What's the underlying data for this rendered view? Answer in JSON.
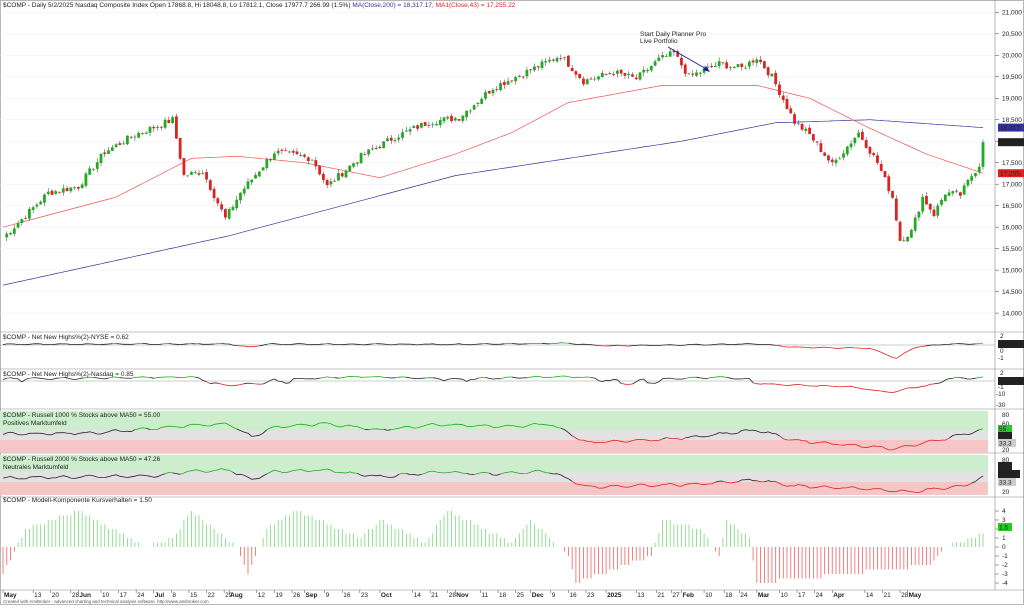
{
  "header": {
    "symbol": "$COMP",
    "line": "- Daily 5/2/2025 Nasdaq Composite Index Open 17868.8, Hi 18048.8, Lo 17812.1, Close 17977.7  266.99  (1.5%)",
    "ma200": "MA(Close,200) = 18,317.17,",
    "ma43": "MA1(Close,43) = 17,255.22"
  },
  "annotation": {
    "line1": "Start Daily Planner Pro",
    "line2": "Live Portfolio"
  },
  "price_badges": {
    "last": "17,977.",
    "ma200": "18,317.",
    "ma43": "17,255."
  },
  "footer": "Created with AmiBroker - advanced charting and technical analysis software. http://www.amibroker.com",
  "colors": {
    "up": "#22aa22",
    "down": "#dd2222",
    "ma200": "#333399",
    "ma43": "#ee5555",
    "green_zone": "#cdeecd",
    "red_zone": "#f6c6c6"
  },
  "panels": {
    "p1": {
      "title": "$COMP - Net New Highs%(2)-NYSE = 0.62",
      "ticks": [
        "2",
        "0",
        "-1"
      ],
      "badge": "0.62158"
    },
    "p2": {
      "title": "$COMP - Net New Highs%(2)-Nasdaq = 0.85",
      "ticks": [
        "2",
        "-1",
        "-10",
        "-30"
      ],
      "badge": "0.84598"
    },
    "p3": {
      "title": "$COMP - Russell 1000 % Stocks above MA50 = 55.00",
      "subtitle": "Positives Marktumfeld",
      "ticks": [
        "80",
        "60",
        "40",
        "20"
      ],
      "badges": [
        "55",
        "50",
        "33.3"
      ]
    },
    "p4": {
      "title": "$COMP - Russell 2000 % Stocks above MA50 = 47.26",
      "subtitle": "Neutrales Marktumfeld",
      "ticks": [
        "80",
        "60",
        "40",
        "20"
      ],
      "badges": [
        "50",
        "47.26",
        "33.3"
      ]
    },
    "p5": {
      "title": "$COMP - Modell-Komponente Kursverhalten = 1.50",
      "badge": "1.5"
    }
  },
  "chart_data": {
    "type": "candlestick",
    "title": "$COMP - Daily 5/2/2025 Nasdaq Composite Index",
    "y_ticks": [
      14000,
      14500,
      15000,
      15500,
      16000,
      16500,
      17000,
      17500,
      18000,
      18500,
      19000,
      19500,
      20000,
      20500,
      21000
    ],
    "ylim": [
      13700,
      21100
    ],
    "x_tick_labels": [
      {
        "label": "May",
        "m": 0,
        "d": 1
      },
      {
        "label": "13",
        "m": 0,
        "d": 13
      },
      {
        "label": "20",
        "m": 0,
        "d": 20
      },
      {
        "label": "28",
        "m": 0,
        "d": 28
      },
      {
        "label": "Jun",
        "m": 1,
        "d": 1
      },
      {
        "label": "10",
        "m": 1,
        "d": 10
      },
      {
        "label": "17",
        "m": 1,
        "d": 17
      },
      {
        "label": "24",
        "m": 1,
        "d": 24
      },
      {
        "label": "Jul",
        "m": 2,
        "d": 1
      },
      {
        "label": "8",
        "m": 2,
        "d": 8
      },
      {
        "label": "15",
        "m": 2,
        "d": 15
      },
      {
        "label": "22",
        "m": 2,
        "d": 22
      },
      {
        "label": "29",
        "m": 2,
        "d": 29
      },
      {
        "label": "Aug",
        "m": 3,
        "d": 1
      },
      {
        "label": "12",
        "m": 3,
        "d": 12
      },
      {
        "label": "19",
        "m": 3,
        "d": 19
      },
      {
        "label": "26",
        "m": 3,
        "d": 26
      },
      {
        "label": "Sep",
        "m": 4,
        "d": 1
      },
      {
        "label": "9",
        "m": 4,
        "d": 9
      },
      {
        "label": "16",
        "m": 4,
        "d": 16
      },
      {
        "label": "23",
        "m": 4,
        "d": 23
      },
      {
        "label": "Oct",
        "m": 5,
        "d": 1
      },
      {
        "label": "14",
        "m": 5,
        "d": 14
      },
      {
        "label": "21",
        "m": 5,
        "d": 21
      },
      {
        "label": "28",
        "m": 5,
        "d": 28
      },
      {
        "label": "Nov",
        "m": 6,
        "d": 1
      },
      {
        "label": "11",
        "m": 6,
        "d": 11
      },
      {
        "label": "18",
        "m": 6,
        "d": 18
      },
      {
        "label": "25",
        "m": 6,
        "d": 25
      },
      {
        "label": "Dec",
        "m": 7,
        "d": 1
      },
      {
        "label": "9",
        "m": 7,
        "d": 9
      },
      {
        "label": "16",
        "m": 7,
        "d": 16
      },
      {
        "label": "23",
        "m": 7,
        "d": 23
      },
      {
        "label": "2025",
        "m": 8,
        "d": 1
      },
      {
        "label": "13",
        "m": 8,
        "d": 13
      },
      {
        "label": "21",
        "m": 8,
        "d": 21
      },
      {
        "label": "27",
        "m": 8,
        "d": 27
      },
      {
        "label": "Feb",
        "m": 9,
        "d": 1
      },
      {
        "label": "10",
        "m": 9,
        "d": 10
      },
      {
        "label": "18",
        "m": 9,
        "d": 18
      },
      {
        "label": "24",
        "m": 9,
        "d": 24
      },
      {
        "label": "Mar",
        "m": 10,
        "d": 1
      },
      {
        "label": "10",
        "m": 10,
        "d": 10
      },
      {
        "label": "17",
        "m": 10,
        "d": 17
      },
      {
        "label": "24",
        "m": 10,
        "d": 24
      },
      {
        "label": "Apr",
        "m": 11,
        "d": 1
      },
      {
        "label": "14",
        "m": 11,
        "d": 14
      },
      {
        "label": "21",
        "m": 11,
        "d": 21
      },
      {
        "label": "28",
        "m": 11,
        "d": 28
      },
      {
        "label": "May",
        "m": 12,
        "d": 1
      }
    ],
    "close_keypoints": [
      [
        0,
        15750
      ],
      [
        12,
        16800
      ],
      [
        20,
        16950
      ],
      [
        27,
        17750
      ],
      [
        35,
        18150
      ],
      [
        45,
        18500
      ],
      [
        48,
        17200
      ],
      [
        53,
        17300
      ],
      [
        59,
        16200
      ],
      [
        63,
        16800
      ],
      [
        72,
        17750
      ],
      [
        82,
        17600
      ],
      [
        86,
        16950
      ],
      [
        95,
        17650
      ],
      [
        104,
        18100
      ],
      [
        113,
        18450
      ],
      [
        121,
        18550
      ],
      [
        130,
        19250
      ],
      [
        141,
        19700
      ],
      [
        148,
        20000
      ],
      [
        154,
        19400
      ],
      [
        162,
        19600
      ],
      [
        168,
        19450
      ],
      [
        174,
        19900
      ],
      [
        178,
        20050
      ],
      [
        182,
        19500
      ],
      [
        190,
        19800
      ],
      [
        196,
        19700
      ],
      [
        200,
        19950
      ],
      [
        204,
        19500
      ],
      [
        210,
        18450
      ],
      [
        214,
        18150
      ],
      [
        220,
        17450
      ],
      [
        227,
        18200
      ],
      [
        232,
        17500
      ],
      [
        236,
        16700
      ],
      [
        238,
        15700
      ],
      [
        241,
        15900
      ],
      [
        244,
        16700
      ],
      [
        247,
        16300
      ],
      [
        250,
        16800
      ],
      [
        254,
        16750
      ],
      [
        257,
        17200
      ],
      [
        259,
        17450
      ],
      [
        260,
        17977.7
      ]
    ],
    "ma200_keypoints": [
      [
        0,
        14650
      ],
      [
        60,
        15800
      ],
      [
        120,
        17200
      ],
      [
        180,
        18000
      ],
      [
        205,
        18430
      ],
      [
        230,
        18500
      ],
      [
        260,
        18317.17
      ]
    ],
    "ma43_keypoints": [
      [
        0,
        16000
      ],
      [
        30,
        16700
      ],
      [
        50,
        17600
      ],
      [
        62,
        17650
      ],
      [
        80,
        17500
      ],
      [
        100,
        17150
      ],
      [
        120,
        17700
      ],
      [
        135,
        18200
      ],
      [
        150,
        18900
      ],
      [
        175,
        19300
      ],
      [
        200,
        19300
      ],
      [
        214,
        19000
      ],
      [
        230,
        18300
      ],
      [
        245,
        17700
      ],
      [
        260,
        17255.22
      ]
    ],
    "last_close": 17977.7,
    "ma200_last": 18317.17,
    "ma43_last": 17255.22
  }
}
